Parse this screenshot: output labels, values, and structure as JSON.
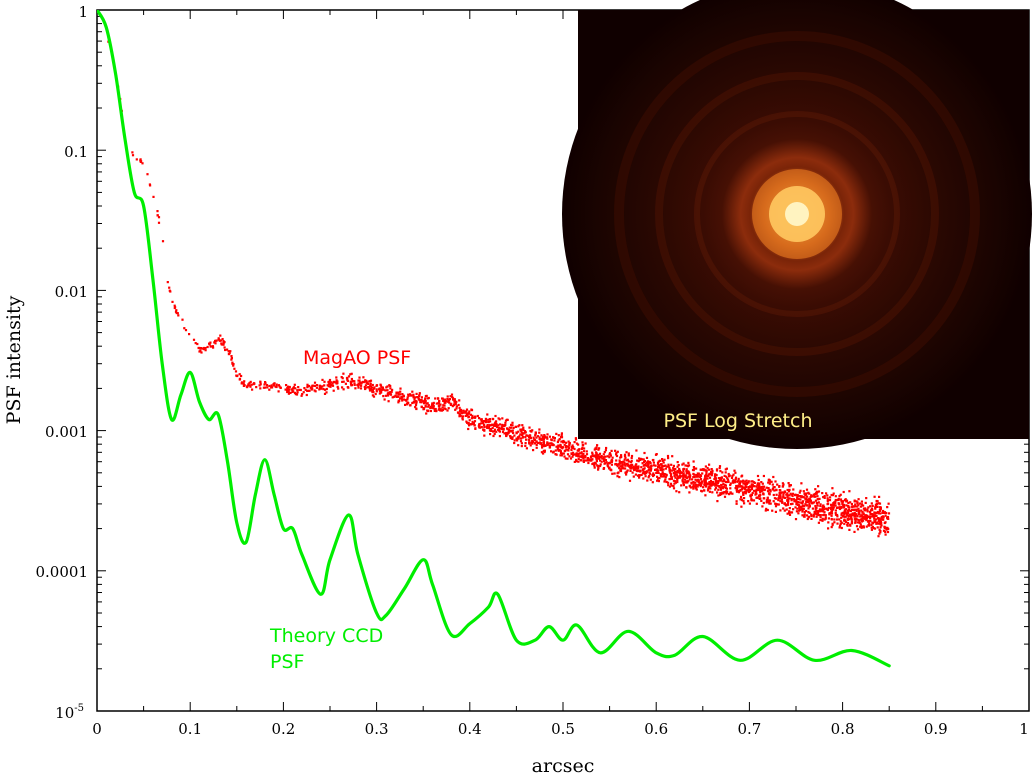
{
  "chart_data": {
    "type": "line",
    "title": "",
    "xlabel": "arcsec",
    "ylabel": "PSF intensity",
    "xlim": [
      0,
      1
    ],
    "ylim": [
      1e-05,
      1
    ],
    "yscale": "log",
    "x_ticks": [
      "0",
      "0.1",
      "0.2",
      "0.3",
      "0.4",
      "0.5",
      "0.6",
      "0.7",
      "0.8",
      "0.9",
      "1"
    ],
    "y_ticks": [
      "1",
      "0.1",
      "0.01",
      "0.001",
      "0.0001"
    ],
    "y_tick_bottom": {
      "base": "10",
      "exp": "-5"
    },
    "series": [
      {
        "name": "MagAO PSF",
        "label_lines": [
          "MagAO PSF"
        ],
        "style": "scatter",
        "color": "#ff0000",
        "x": [
          0.0,
          0.01,
          0.02,
          0.03,
          0.04,
          0.05,
          0.06,
          0.07,
          0.075,
          0.08,
          0.09,
          0.1,
          0.11,
          0.12,
          0.13,
          0.14,
          0.15,
          0.16,
          0.18,
          0.2,
          0.22,
          0.25,
          0.27,
          0.3,
          0.33,
          0.36,
          0.38,
          0.4,
          0.45,
          0.5,
          0.55,
          0.6,
          0.65,
          0.7,
          0.75,
          0.8,
          0.85
        ],
        "y": [
          1.0,
          0.7,
          0.35,
          0.14,
          0.09,
          0.08,
          0.05,
          0.025,
          0.012,
          0.0085,
          0.0062,
          0.0048,
          0.0038,
          0.004,
          0.0045,
          0.0039,
          0.0025,
          0.0021,
          0.0021,
          0.002,
          0.0019,
          0.0021,
          0.0023,
          0.002,
          0.0017,
          0.0015,
          0.0016,
          0.0012,
          0.00095,
          0.00075,
          0.0006,
          0.00052,
          0.00045,
          0.00038,
          0.00032,
          0.00027,
          0.00023
        ]
      },
      {
        "name": "Theory CCD PSF",
        "label_lines": [
          "Theory CCD",
          "PSF"
        ],
        "style": "line",
        "color": "#00ee00",
        "x": [
          0.0,
          0.01,
          0.02,
          0.03,
          0.04,
          0.05,
          0.06,
          0.07,
          0.08,
          0.09,
          0.1,
          0.11,
          0.12,
          0.13,
          0.14,
          0.15,
          0.16,
          0.17,
          0.18,
          0.19,
          0.2,
          0.21,
          0.22,
          0.24,
          0.25,
          0.27,
          0.28,
          0.3,
          0.31,
          0.33,
          0.35,
          0.36,
          0.38,
          0.4,
          0.42,
          0.43,
          0.45,
          0.47,
          0.485,
          0.5,
          0.515,
          0.54,
          0.57,
          0.6,
          0.62,
          0.65,
          0.69,
          0.73,
          0.77,
          0.81,
          0.85
        ],
        "y": [
          1.0,
          0.75,
          0.35,
          0.12,
          0.05,
          0.04,
          0.012,
          0.003,
          0.0012,
          0.0018,
          0.0026,
          0.0016,
          0.0012,
          0.0013,
          0.0006,
          0.00022,
          0.00016,
          0.00035,
          0.00062,
          0.00035,
          0.0002,
          0.0002,
          0.00013,
          6.8e-05,
          0.00012,
          0.00025,
          0.00013,
          5e-05,
          4.8e-05,
          7.5e-05,
          0.00012,
          8e-05,
          3.5e-05,
          4.2e-05,
          5.5e-05,
          6.8e-05,
          3.2e-05,
          3.2e-05,
          4e-05,
          3.2e-05,
          4.1e-05,
          2.6e-05,
          3.7e-05,
          2.6e-05,
          2.5e-05,
          3.4e-05,
          2.3e-05,
          3.2e-05,
          2.3e-05,
          2.7e-05,
          2.1e-05
        ]
      }
    ],
    "inset": {
      "label": "PSF Log Stretch",
      "label_color": "#ffee88",
      "background": "#100000"
    }
  }
}
